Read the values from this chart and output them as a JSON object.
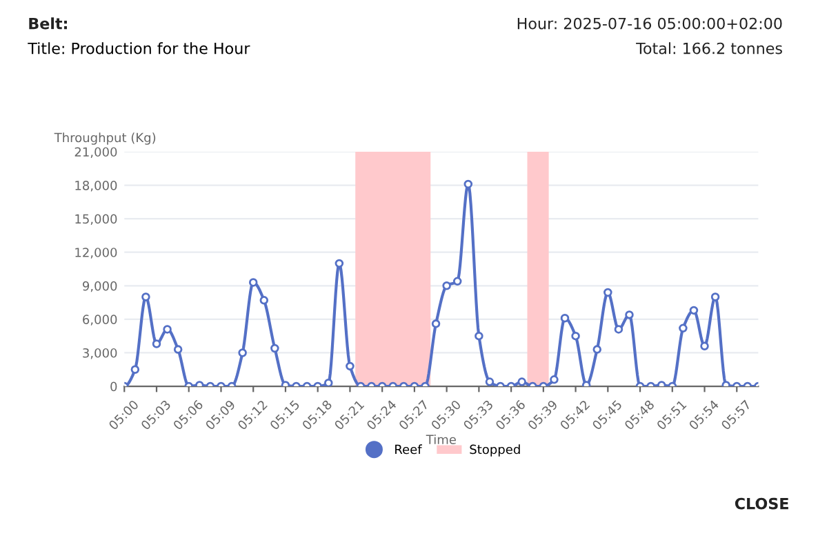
{
  "chart_data": {
    "type": "line",
    "title": "Title: Production for the Hour",
    "annotations": [
      "Belt:",
      "Hour: 2025-07-16 05:00:00+02:00",
      "Total: 166.2 tonnes",
      "CLOSE"
    ],
    "xlabel": "Time",
    "ylabel": "Throughput (Kg)",
    "x": [
      "2025-07-16T05:00",
      "2025-07-16T05:01",
      "2025-07-16T05:02",
      "2025-07-16T05:03",
      "2025-07-16T05:04",
      "2025-07-16T05:05",
      "2025-07-16T05:06",
      "2025-07-16T05:07",
      "2025-07-16T05:08",
      "2025-07-16T05:09",
      "2025-07-16T05:10",
      "2025-07-16T05:11",
      "2025-07-16T05:12",
      "2025-07-16T05:13",
      "2025-07-16T05:14",
      "2025-07-16T05:15",
      "2025-07-16T05:16",
      "2025-07-16T05:17",
      "2025-07-16T05:18",
      "2025-07-16T05:19",
      "2025-07-16T05:20",
      "2025-07-16T05:21",
      "2025-07-16T05:22",
      "2025-07-16T05:23",
      "2025-07-16T05:24",
      "2025-07-16T05:25",
      "2025-07-16T05:26",
      "2025-07-16T05:27",
      "2025-07-16T05:28",
      "2025-07-16T05:29",
      "2025-07-16T05:30",
      "2025-07-16T05:31",
      "2025-07-16T05:32",
      "2025-07-16T05:33",
      "2025-07-16T05:34",
      "2025-07-16T05:35",
      "2025-07-16T05:36",
      "2025-07-16T05:37",
      "2025-07-16T05:38",
      "2025-07-16T05:39",
      "2025-07-16T05:40",
      "2025-07-16T05:41",
      "2025-07-16T05:42",
      "2025-07-16T05:43",
      "2025-07-16T05:44",
      "2025-07-16T05:45",
      "2025-07-16T05:46",
      "2025-07-16T05:47",
      "2025-07-16T05:48",
      "2025-07-16T05:49",
      "2025-07-16T05:50",
      "2025-07-16T05:51",
      "2025-07-16T05:52",
      "2025-07-16T05:53",
      "2025-07-16T05:54",
      "2025-07-16T05:55",
      "2025-07-16T05:56",
      "2025-07-16T05:57",
      "2025-07-16T05:58",
      "2025-07-16T05:59"
    ],
    "series": [
      {
        "name": "Reef",
        "color": "#5470c6",
        "values": [
          0,
          1500,
          8000,
          3800,
          5100,
          3300,
          0,
          100,
          0,
          0,
          0,
          3000,
          9300,
          7700,
          3400,
          100,
          0,
          0,
          0,
          300,
          11000,
          1800,
          0,
          0,
          0,
          0,
          0,
          0,
          0,
          5600,
          9000,
          9400,
          18100,
          4500,
          400,
          0,
          0,
          400,
          0,
          0,
          600,
          6100,
          4500,
          100,
          3300,
          8400,
          5100,
          6400,
          0,
          0,
          100,
          0,
          5200,
          6800,
          3600,
          8000,
          100,
          0,
          0,
          0
        ]
      }
    ],
    "bands": [
      {
        "axis": "x",
        "from": "2025-07-16T05:21:30",
        "to": "2025-07-16T05:28:30",
        "label": "Stopped",
        "color": "#ffc9cc"
      },
      {
        "axis": "x",
        "from": "2025-07-16T05:37:30",
        "to": "2025-07-16T05:39:30",
        "color": "#ffc9cc"
      }
    ],
    "xlim": [
      "2025-07-16T05:00",
      "2025-07-16T05:59"
    ],
    "xticks": [
      {
        "value": "2025-07-16T05:00",
        "label": "05:00"
      },
      {
        "value": "2025-07-16T05:03",
        "label": "05:03"
      },
      {
        "value": "2025-07-16T05:06",
        "label": "05:06"
      },
      {
        "value": "2025-07-16T05:09",
        "label": "05:09"
      },
      {
        "value": "2025-07-16T05:12",
        "label": "05:12"
      },
      {
        "value": "2025-07-16T05:15",
        "label": "05:15"
      },
      {
        "value": "2025-07-16T05:18",
        "label": "05:18"
      },
      {
        "value": "2025-07-16T05:21",
        "label": "05:21"
      },
      {
        "value": "2025-07-16T05:24",
        "label": "05:24"
      },
      {
        "value": "2025-07-16T05:27",
        "label": "05:27"
      },
      {
        "value": "2025-07-16T05:30",
        "label": "05:30"
      },
      {
        "value": "2025-07-16T05:33",
        "label": "05:33"
      },
      {
        "value": "2025-07-16T05:36",
        "label": "05:36"
      },
      {
        "value": "2025-07-16T05:39",
        "label": "05:39"
      },
      {
        "value": "2025-07-16T05:42",
        "label": "05:42"
      },
      {
        "value": "2025-07-16T05:45",
        "label": "05:45"
      },
      {
        "value": "2025-07-16T05:48",
        "label": "05:48"
      },
      {
        "value": "2025-07-16T05:51",
        "label": "05:51"
      },
      {
        "value": "2025-07-16T05:54",
        "label": "05:54"
      },
      {
        "value": "2025-07-16T05:57",
        "label": "05:57"
      }
    ],
    "ylim": [
      0,
      21000
    ],
    "yticks": [
      0,
      {
        "value": 3000,
        "label": "3,000"
      },
      {
        "value": 6000,
        "label": "6,000"
      },
      {
        "value": 9000,
        "label": "9,000"
      },
      {
        "value": 12000,
        "label": "12,000"
      },
      {
        "value": 15000,
        "label": "15,000"
      },
      {
        "value": 18000,
        "label": "18,000"
      },
      {
        "value": 21000,
        "label": "21,000"
      }
    ],
    "marker": "circle",
    "grid": "y",
    "legend": "bottom"
  }
}
